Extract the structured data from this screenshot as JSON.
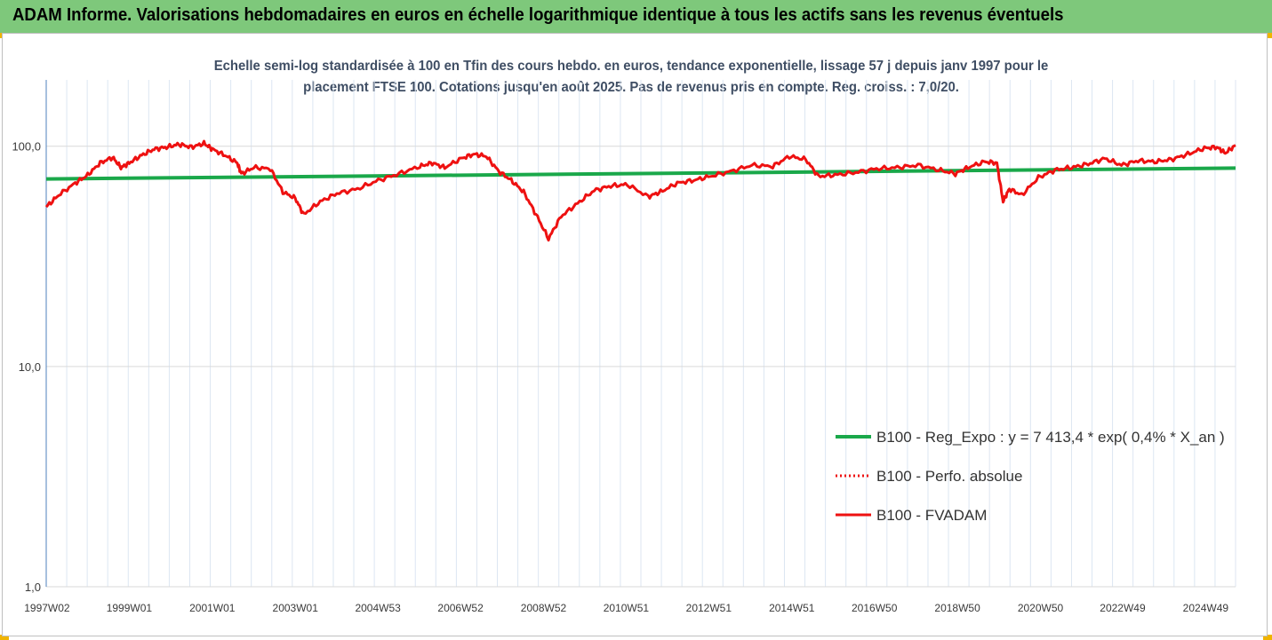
{
  "header": {
    "title": "ADAM Informe. Valorisations hebdomadaires en euros en échelle logarithmique identique à tous les actifs sans les revenus éventuels"
  },
  "chart_data": {
    "type": "line",
    "subtitle_lines": [
      "Echelle semi-log standardisée à 100 en Tfin des cours hebdo. en euros, tendance exponentielle, lissage 57 j depuis janv 1997 pour le",
      "placement FTSE 100. Cotations jusqu'en août 2025. Pas de revenus pris en compte. Reg. croiss. : 7,0/20."
    ],
    "y_scale": "log",
    "ylim": [
      1,
      200
    ],
    "y_ticks": [
      1,
      10,
      100
    ],
    "y_tick_labels": [
      "1,0",
      "10,0",
      "100,0"
    ],
    "xlim": [
      1997.0,
      2025.65
    ],
    "x_ticks": [
      1997.02,
      1999.0,
      2001.0,
      2003.0,
      2004.99,
      2006.98,
      2008.98,
      2010.97,
      2012.96,
      2014.96,
      2016.95,
      2018.95,
      2020.95,
      2022.93,
      2024.93
    ],
    "x_tick_labels": [
      "1997W02",
      "1999W01",
      "2001W01",
      "2003W01",
      "2004W53",
      "2006W52",
      "2008W52",
      "2010W51",
      "2012W51",
      "2014W51",
      "2016W50",
      "2018W50",
      "2020W50",
      "2022W49",
      "2024W49"
    ],
    "grid": "vertical",
    "legend_position": "bottom-right",
    "colors": {
      "trend": "#1aa84a",
      "perf": "#ee1111",
      "fvadam": "#ee1111"
    },
    "series": [
      {
        "name": "B100 - Reg_Expo : y = 7 413,4 * exp( 0,4% *  X_an )",
        "style": "solid-thick",
        "x": [
          1997.0,
          2025.65
        ],
        "y": [
          71.0,
          79.5
        ]
      },
      {
        "name": "B100 - Perfo. absolue",
        "style": "dotted",
        "x": [],
        "y": []
      },
      {
        "name": "B100 - FVADAM",
        "style": "solid",
        "x": [
          1997.0,
          1997.3,
          1997.7,
          1998.0,
          1998.3,
          1998.6,
          1998.8,
          1999.0,
          1999.3,
          1999.6,
          1999.9,
          2000.2,
          2000.5,
          2000.8,
          2001.0,
          2001.3,
          2001.6,
          2001.7,
          2002.0,
          2002.4,
          2002.7,
          2003.0,
          2003.2,
          2003.6,
          2004.0,
          2004.5,
          2005.0,
          2005.5,
          2006.0,
          2006.3,
          2006.6,
          2007.0,
          2007.3,
          2007.6,
          2007.9,
          2008.2,
          2008.5,
          2008.8,
          2009.1,
          2009.4,
          2009.8,
          2010.2,
          2010.6,
          2011.0,
          2011.5,
          2011.8,
          2012.2,
          2012.6,
          2013.0,
          2013.5,
          2014.0,
          2014.5,
          2014.9,
          2015.3,
          2015.6,
          2016.0,
          2016.5,
          2017.0,
          2017.5,
          2018.0,
          2018.5,
          2018.9,
          2019.2,
          2019.6,
          2019.9,
          2020.05,
          2020.2,
          2020.5,
          2020.9,
          2021.3,
          2021.7,
          2022.1,
          2022.5,
          2022.9,
          2023.3,
          2023.7,
          2024.1,
          2024.5,
          2024.9,
          2025.2,
          2025.4,
          2025.65
        ],
        "y": [
          53,
          60,
          68,
          74,
          84,
          89,
          80,
          84,
          91,
          97,
          99,
          102,
          99,
          103,
          97,
          91,
          84,
          75,
          80,
          79,
          62,
          58,
          49,
          56,
          61,
          64,
          70,
          75,
          81,
          84,
          80,
          88,
          92,
          90,
          77,
          70,
          62,
          49,
          38,
          48,
          55,
          63,
          66,
          67,
          59,
          62,
          68,
          70,
          73,
          77,
          82,
          81,
          90,
          87,
          73,
          74,
          76,
          79,
          80,
          82,
          78,
          75,
          80,
          85,
          84,
          56,
          64,
          60,
          72,
          78,
          80,
          83,
          88,
          82,
          86,
          85,
          87,
          92,
          98,
          99,
          93,
          101
        ]
      }
    ]
  }
}
